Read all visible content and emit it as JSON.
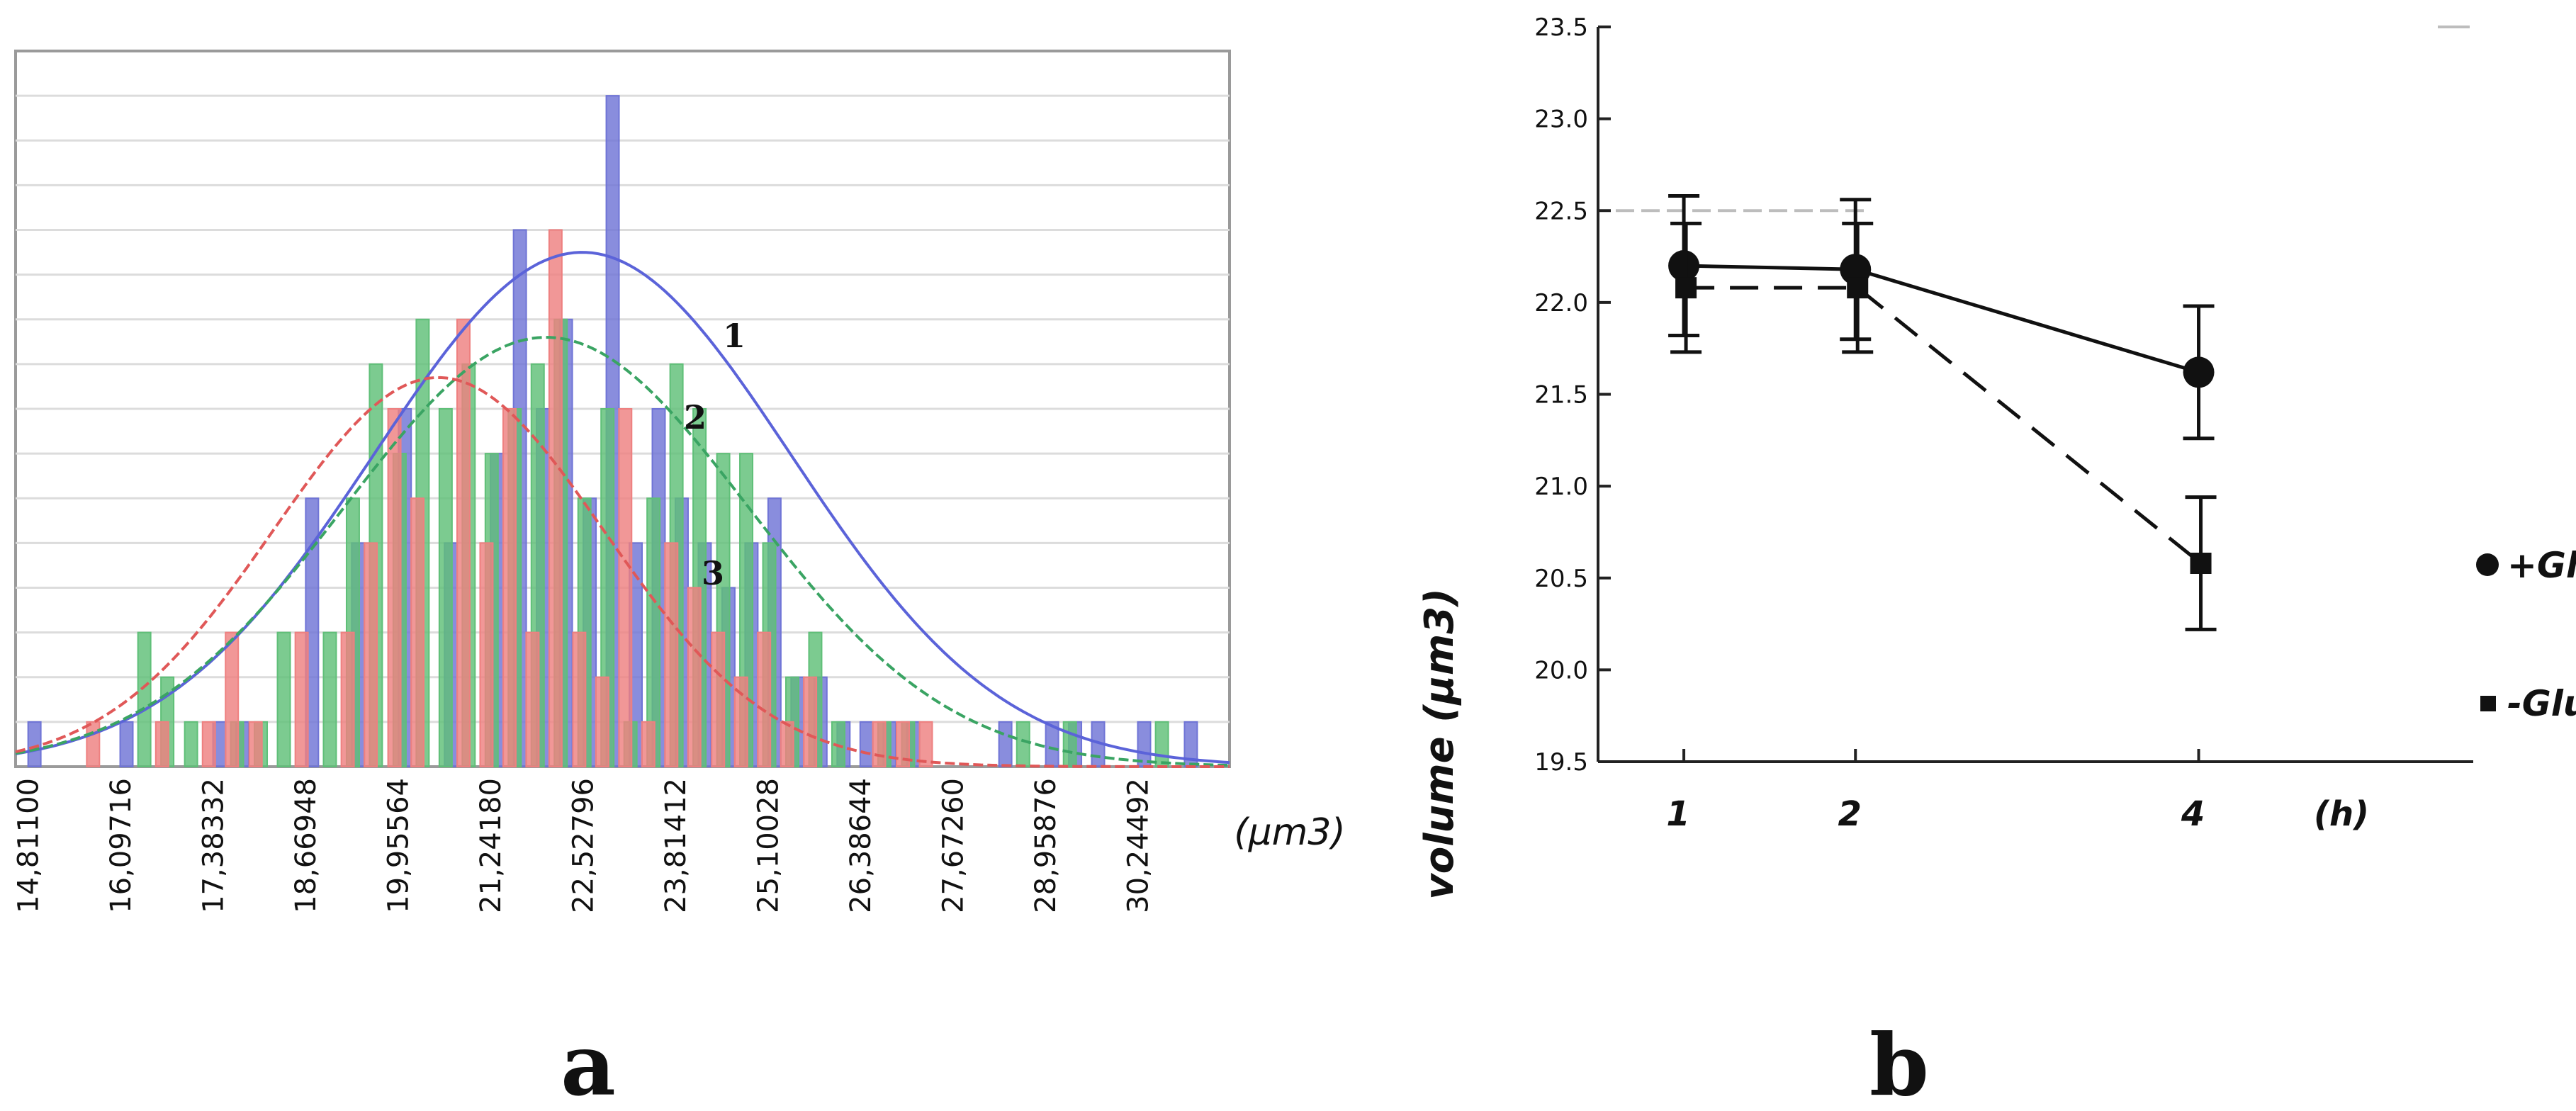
{
  "chart_data": [
    {
      "panel": "a",
      "type": "bar",
      "title": "",
      "xlabel": "(µm3)",
      "ylabel": "",
      "categories": [
        "14,81100",
        "16,09716",
        "17,38332",
        "18,66948",
        "19,95564",
        "21,24180",
        "22,52796",
        "23,81412",
        "25,10028",
        "26,38644",
        "27,67260",
        "28,95876",
        "30,24492"
      ],
      "bin_width": 0.322,
      "xlim": [
        14.62,
        31.5
      ],
      "ylim": [
        0,
        16
      ],
      "grid": true,
      "series": [
        {
          "name": "1",
          "color": "#6f74d6",
          "x": [
            14.81,
            16.09,
            17.38,
            17.7,
            18.67,
            19.31,
            19.96,
            20.6,
            21.24,
            21.56,
            21.88,
            22.2,
            22.53,
            22.85,
            23.17,
            23.49,
            23.81,
            24.13,
            24.46,
            24.78,
            25.1,
            25.42,
            25.74,
            26.06,
            26.38,
            26.7,
            27.03,
            28.31,
            28.96,
            29.28,
            29.6,
            30.24,
            30.89
          ],
          "values": [
            1,
            1,
            1,
            1,
            6,
            5,
            8,
            5,
            7,
            12,
            8,
            10,
            6,
            15,
            5,
            8,
            6,
            5,
            4,
            5,
            6,
            2,
            2,
            1,
            1,
            1,
            1,
            1,
            1,
            1,
            1,
            1,
            1
          ],
          "fit_curve": {
            "label": "1",
            "mean": 22.5,
            "sd": 2.9,
            "peak": 11.5
          }
        },
        {
          "name": "2",
          "color": "#5fbf78",
          "x": [
            16.41,
            16.73,
            17.06,
            17.7,
            18.03,
            18.35,
            18.99,
            19.31,
            19.63,
            19.96,
            20.28,
            20.6,
            20.92,
            21.24,
            21.56,
            21.88,
            22.2,
            22.53,
            22.85,
            23.17,
            23.49,
            23.81,
            24.13,
            24.46,
            24.78,
            25.1,
            25.42,
            25.74,
            26.06,
            26.7,
            27.03,
            28.63,
            29.28,
            30.56
          ],
          "values": [
            3,
            2,
            1,
            1,
            1,
            3,
            3,
            6,
            9,
            7,
            10,
            8,
            9,
            7,
            8,
            9,
            10,
            6,
            8,
            1,
            6,
            9,
            8,
            7,
            7,
            5,
            2,
            3,
            1,
            1,
            1,
            1,
            1,
            1
          ],
          "fit_curve": {
            "label": "2",
            "mean": 22.0,
            "sd": 2.8,
            "peak": 9.6
          }
        },
        {
          "name": "3",
          "color": "#ee8080",
          "x": [
            15.77,
            16.73,
            17.38,
            17.7,
            18.03,
            18.67,
            19.31,
            19.63,
            19.96,
            20.28,
            20.92,
            21.24,
            21.56,
            21.88,
            22.2,
            22.53,
            22.85,
            23.17,
            23.49,
            23.81,
            24.13,
            24.46,
            24.78,
            25.1,
            25.42,
            25.74,
            26.7,
            27.03,
            27.35
          ],
          "values": [
            1,
            1,
            1,
            3,
            1,
            3,
            3,
            5,
            8,
            6,
            10,
            5,
            8,
            3,
            12,
            3,
            2,
            8,
            1,
            5,
            4,
            3,
            2,
            3,
            1,
            2,
            1,
            1,
            1
          ],
          "fit_curve": {
            "label": "3",
            "mean": 20.5,
            "sd": 2.3,
            "peak": 8.7
          }
        }
      ]
    },
    {
      "panel": "b",
      "type": "line",
      "title": "",
      "xlabel": "(h)",
      "ylabel": "volume (µm3)",
      "x": [
        1,
        2,
        4
      ],
      "xticks": [
        "1",
        "2",
        "4"
      ],
      "xlim": [
        0.5,
        5.6
      ],
      "yticks": [
        "19.5",
        "20.0",
        "20.5",
        "21.0",
        "21.5",
        "22.0",
        "22.5",
        "23.0",
        "23.5"
      ],
      "ylim": [
        19.5,
        23.5
      ],
      "series": [
        {
          "name": "+Glu",
          "marker": "circle",
          "line": "solid",
          "values": [
            22.2,
            22.18,
            21.62
          ],
          "error": [
            0.38,
            0.38,
            0.36
          ]
        },
        {
          "name": "-Glu",
          "marker": "square",
          "line": "dashed",
          "values": [
            22.08,
            22.08,
            20.58
          ],
          "error": [
            0.35,
            0.35,
            0.36
          ]
        }
      ],
      "reference_line": 22.5
    }
  ],
  "labels": {
    "panel_a": "a",
    "panel_b": "b"
  }
}
